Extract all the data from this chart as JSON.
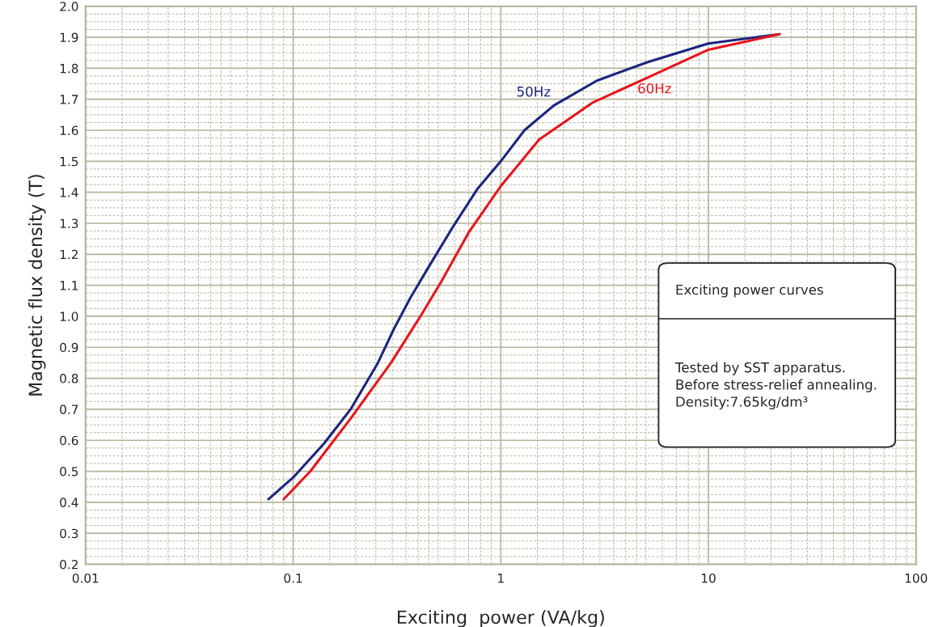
{
  "chart_data": {
    "type": "line",
    "xlabel": "Exciting  power (VA/kg)",
    "ylabel": "Magnetic flux density (T)",
    "log": "x",
    "grid": true,
    "legend": false,
    "marker": "none",
    "line_style": "solid",
    "xlim": [
      0.01,
      100
    ],
    "xticks": [
      0.01,
      0.1,
      1,
      10,
      100
    ],
    "ylim": [
      0.2,
      2.0
    ],
    "yticks": [
      0.2,
      0.3,
      0.4,
      0.5,
      0.6,
      0.7,
      0.8,
      0.9,
      {
        "value": 1.0,
        "label": "1.0"
      },
      1.1,
      1.2,
      1.3,
      1.4,
      1.5,
      1.6,
      1.7,
      1.8,
      1.9,
      {
        "value": 2.0,
        "label": "2.0"
      }
    ],
    "series": [
      {
        "name": "50Hz",
        "color": "#1c2580",
        "x": [
          0.076,
          0.1,
          0.141,
          0.189,
          0.256,
          0.306,
          0.367,
          0.45,
          0.59,
          0.77,
          1.0,
          1.3,
          1.8,
          2.9,
          5.1,
          10,
          22
        ],
        "values": [
          0.41,
          0.48,
          0.59,
          0.7,
          0.85,
          0.96,
          1.06,
          1.16,
          1.29,
          1.41,
          1.5,
          1.6,
          1.68,
          1.76,
          1.82,
          1.88,
          1.91
        ]
      },
      {
        "name": "60Hz",
        "color": "#e8141b",
        "x": [
          0.09,
          0.121,
          0.189,
          0.296,
          0.41,
          0.515,
          0.7,
          1.0,
          1.53,
          2.78,
          5.1,
          10,
          22
        ],
        "values": [
          0.41,
          0.5,
          0.67,
          0.85,
          1.0,
          1.11,
          1.27,
          1.42,
          1.57,
          1.69,
          1.77,
          1.86,
          1.91
        ]
      }
    ],
    "annotations": [
      "Exciting power curves",
      "Tested by SST apparatus.\nBefore stress-relief annealing.\nDensity:7.65kg/dm³"
    ]
  }
}
